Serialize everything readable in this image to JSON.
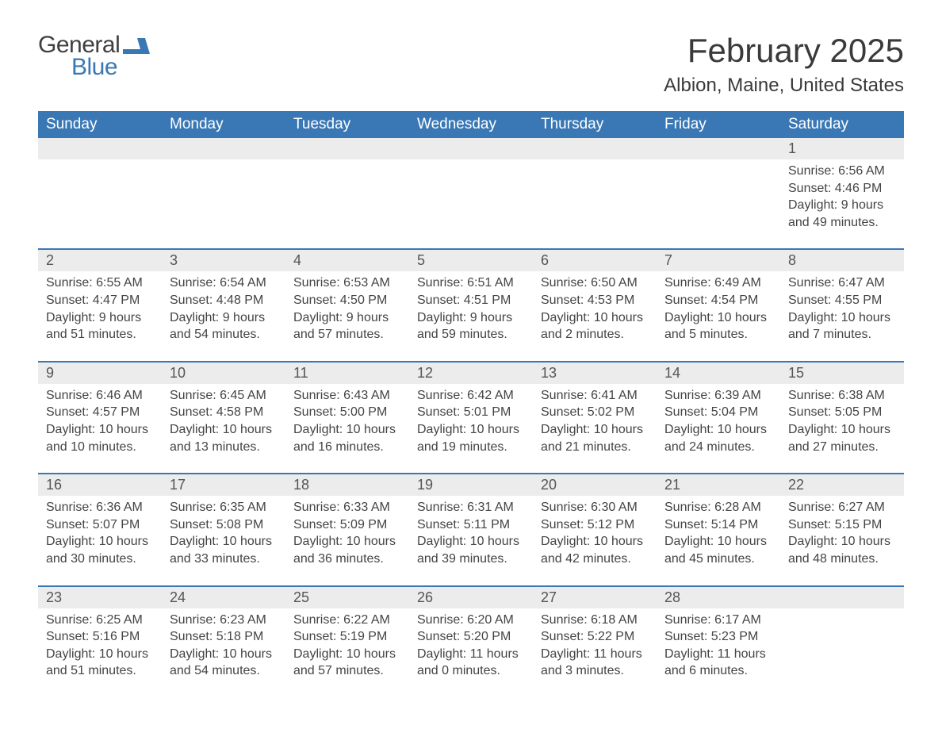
{
  "logo": {
    "text1": "General",
    "text2": "Blue",
    "color_gray": "#404040",
    "color_blue": "#3a78b5"
  },
  "title": {
    "month": "February 2025",
    "location": "Albion, Maine, United States"
  },
  "style": {
    "header_bg": "#3a78b5",
    "header_fg": "#ffffff",
    "daynum_bg": "#ececec",
    "daynum_fg": "#555555",
    "body_bg": "#ffffff",
    "body_fg": "#444444",
    "page_bg": "#ffffff",
    "dow_fontsize": 19,
    "title_fontsize": 42,
    "location_fontsize": 24,
    "daynum_fontsize": 18,
    "detail_fontsize": 16
  },
  "days_of_week": [
    "Sunday",
    "Monday",
    "Tuesday",
    "Wednesday",
    "Thursday",
    "Friday",
    "Saturday"
  ],
  "weeks": [
    [
      null,
      null,
      null,
      null,
      null,
      null,
      {
        "n": "1",
        "sr": "Sunrise: 6:56 AM",
        "ss": "Sunset: 4:46 PM",
        "d1": "Daylight: 9 hours",
        "d2": "and 49 minutes."
      }
    ],
    [
      {
        "n": "2",
        "sr": "Sunrise: 6:55 AM",
        "ss": "Sunset: 4:47 PM",
        "d1": "Daylight: 9 hours",
        "d2": "and 51 minutes."
      },
      {
        "n": "3",
        "sr": "Sunrise: 6:54 AM",
        "ss": "Sunset: 4:48 PM",
        "d1": "Daylight: 9 hours",
        "d2": "and 54 minutes."
      },
      {
        "n": "4",
        "sr": "Sunrise: 6:53 AM",
        "ss": "Sunset: 4:50 PM",
        "d1": "Daylight: 9 hours",
        "d2": "and 57 minutes."
      },
      {
        "n": "5",
        "sr": "Sunrise: 6:51 AM",
        "ss": "Sunset: 4:51 PM",
        "d1": "Daylight: 9 hours",
        "d2": "and 59 minutes."
      },
      {
        "n": "6",
        "sr": "Sunrise: 6:50 AM",
        "ss": "Sunset: 4:53 PM",
        "d1": "Daylight: 10 hours",
        "d2": "and 2 minutes."
      },
      {
        "n": "7",
        "sr": "Sunrise: 6:49 AM",
        "ss": "Sunset: 4:54 PM",
        "d1": "Daylight: 10 hours",
        "d2": "and 5 minutes."
      },
      {
        "n": "8",
        "sr": "Sunrise: 6:47 AM",
        "ss": "Sunset: 4:55 PM",
        "d1": "Daylight: 10 hours",
        "d2": "and 7 minutes."
      }
    ],
    [
      {
        "n": "9",
        "sr": "Sunrise: 6:46 AM",
        "ss": "Sunset: 4:57 PM",
        "d1": "Daylight: 10 hours",
        "d2": "and 10 minutes."
      },
      {
        "n": "10",
        "sr": "Sunrise: 6:45 AM",
        "ss": "Sunset: 4:58 PM",
        "d1": "Daylight: 10 hours",
        "d2": "and 13 minutes."
      },
      {
        "n": "11",
        "sr": "Sunrise: 6:43 AM",
        "ss": "Sunset: 5:00 PM",
        "d1": "Daylight: 10 hours",
        "d2": "and 16 minutes."
      },
      {
        "n": "12",
        "sr": "Sunrise: 6:42 AM",
        "ss": "Sunset: 5:01 PM",
        "d1": "Daylight: 10 hours",
        "d2": "and 19 minutes."
      },
      {
        "n": "13",
        "sr": "Sunrise: 6:41 AM",
        "ss": "Sunset: 5:02 PM",
        "d1": "Daylight: 10 hours",
        "d2": "and 21 minutes."
      },
      {
        "n": "14",
        "sr": "Sunrise: 6:39 AM",
        "ss": "Sunset: 5:04 PM",
        "d1": "Daylight: 10 hours",
        "d2": "and 24 minutes."
      },
      {
        "n": "15",
        "sr": "Sunrise: 6:38 AM",
        "ss": "Sunset: 5:05 PM",
        "d1": "Daylight: 10 hours",
        "d2": "and 27 minutes."
      }
    ],
    [
      {
        "n": "16",
        "sr": "Sunrise: 6:36 AM",
        "ss": "Sunset: 5:07 PM",
        "d1": "Daylight: 10 hours",
        "d2": "and 30 minutes."
      },
      {
        "n": "17",
        "sr": "Sunrise: 6:35 AM",
        "ss": "Sunset: 5:08 PM",
        "d1": "Daylight: 10 hours",
        "d2": "and 33 minutes."
      },
      {
        "n": "18",
        "sr": "Sunrise: 6:33 AM",
        "ss": "Sunset: 5:09 PM",
        "d1": "Daylight: 10 hours",
        "d2": "and 36 minutes."
      },
      {
        "n": "19",
        "sr": "Sunrise: 6:31 AM",
        "ss": "Sunset: 5:11 PM",
        "d1": "Daylight: 10 hours",
        "d2": "and 39 minutes."
      },
      {
        "n": "20",
        "sr": "Sunrise: 6:30 AM",
        "ss": "Sunset: 5:12 PM",
        "d1": "Daylight: 10 hours",
        "d2": "and 42 minutes."
      },
      {
        "n": "21",
        "sr": "Sunrise: 6:28 AM",
        "ss": "Sunset: 5:14 PM",
        "d1": "Daylight: 10 hours",
        "d2": "and 45 minutes."
      },
      {
        "n": "22",
        "sr": "Sunrise: 6:27 AM",
        "ss": "Sunset: 5:15 PM",
        "d1": "Daylight: 10 hours",
        "d2": "and 48 minutes."
      }
    ],
    [
      {
        "n": "23",
        "sr": "Sunrise: 6:25 AM",
        "ss": "Sunset: 5:16 PM",
        "d1": "Daylight: 10 hours",
        "d2": "and 51 minutes."
      },
      {
        "n": "24",
        "sr": "Sunrise: 6:23 AM",
        "ss": "Sunset: 5:18 PM",
        "d1": "Daylight: 10 hours",
        "d2": "and 54 minutes."
      },
      {
        "n": "25",
        "sr": "Sunrise: 6:22 AM",
        "ss": "Sunset: 5:19 PM",
        "d1": "Daylight: 10 hours",
        "d2": "and 57 minutes."
      },
      {
        "n": "26",
        "sr": "Sunrise: 6:20 AM",
        "ss": "Sunset: 5:20 PM",
        "d1": "Daylight: 11 hours",
        "d2": "and 0 minutes."
      },
      {
        "n": "27",
        "sr": "Sunrise: 6:18 AM",
        "ss": "Sunset: 5:22 PM",
        "d1": "Daylight: 11 hours",
        "d2": "and 3 minutes."
      },
      {
        "n": "28",
        "sr": "Sunrise: 6:17 AM",
        "ss": "Sunset: 5:23 PM",
        "d1": "Daylight: 11 hours",
        "d2": "and 6 minutes."
      },
      null
    ]
  ]
}
